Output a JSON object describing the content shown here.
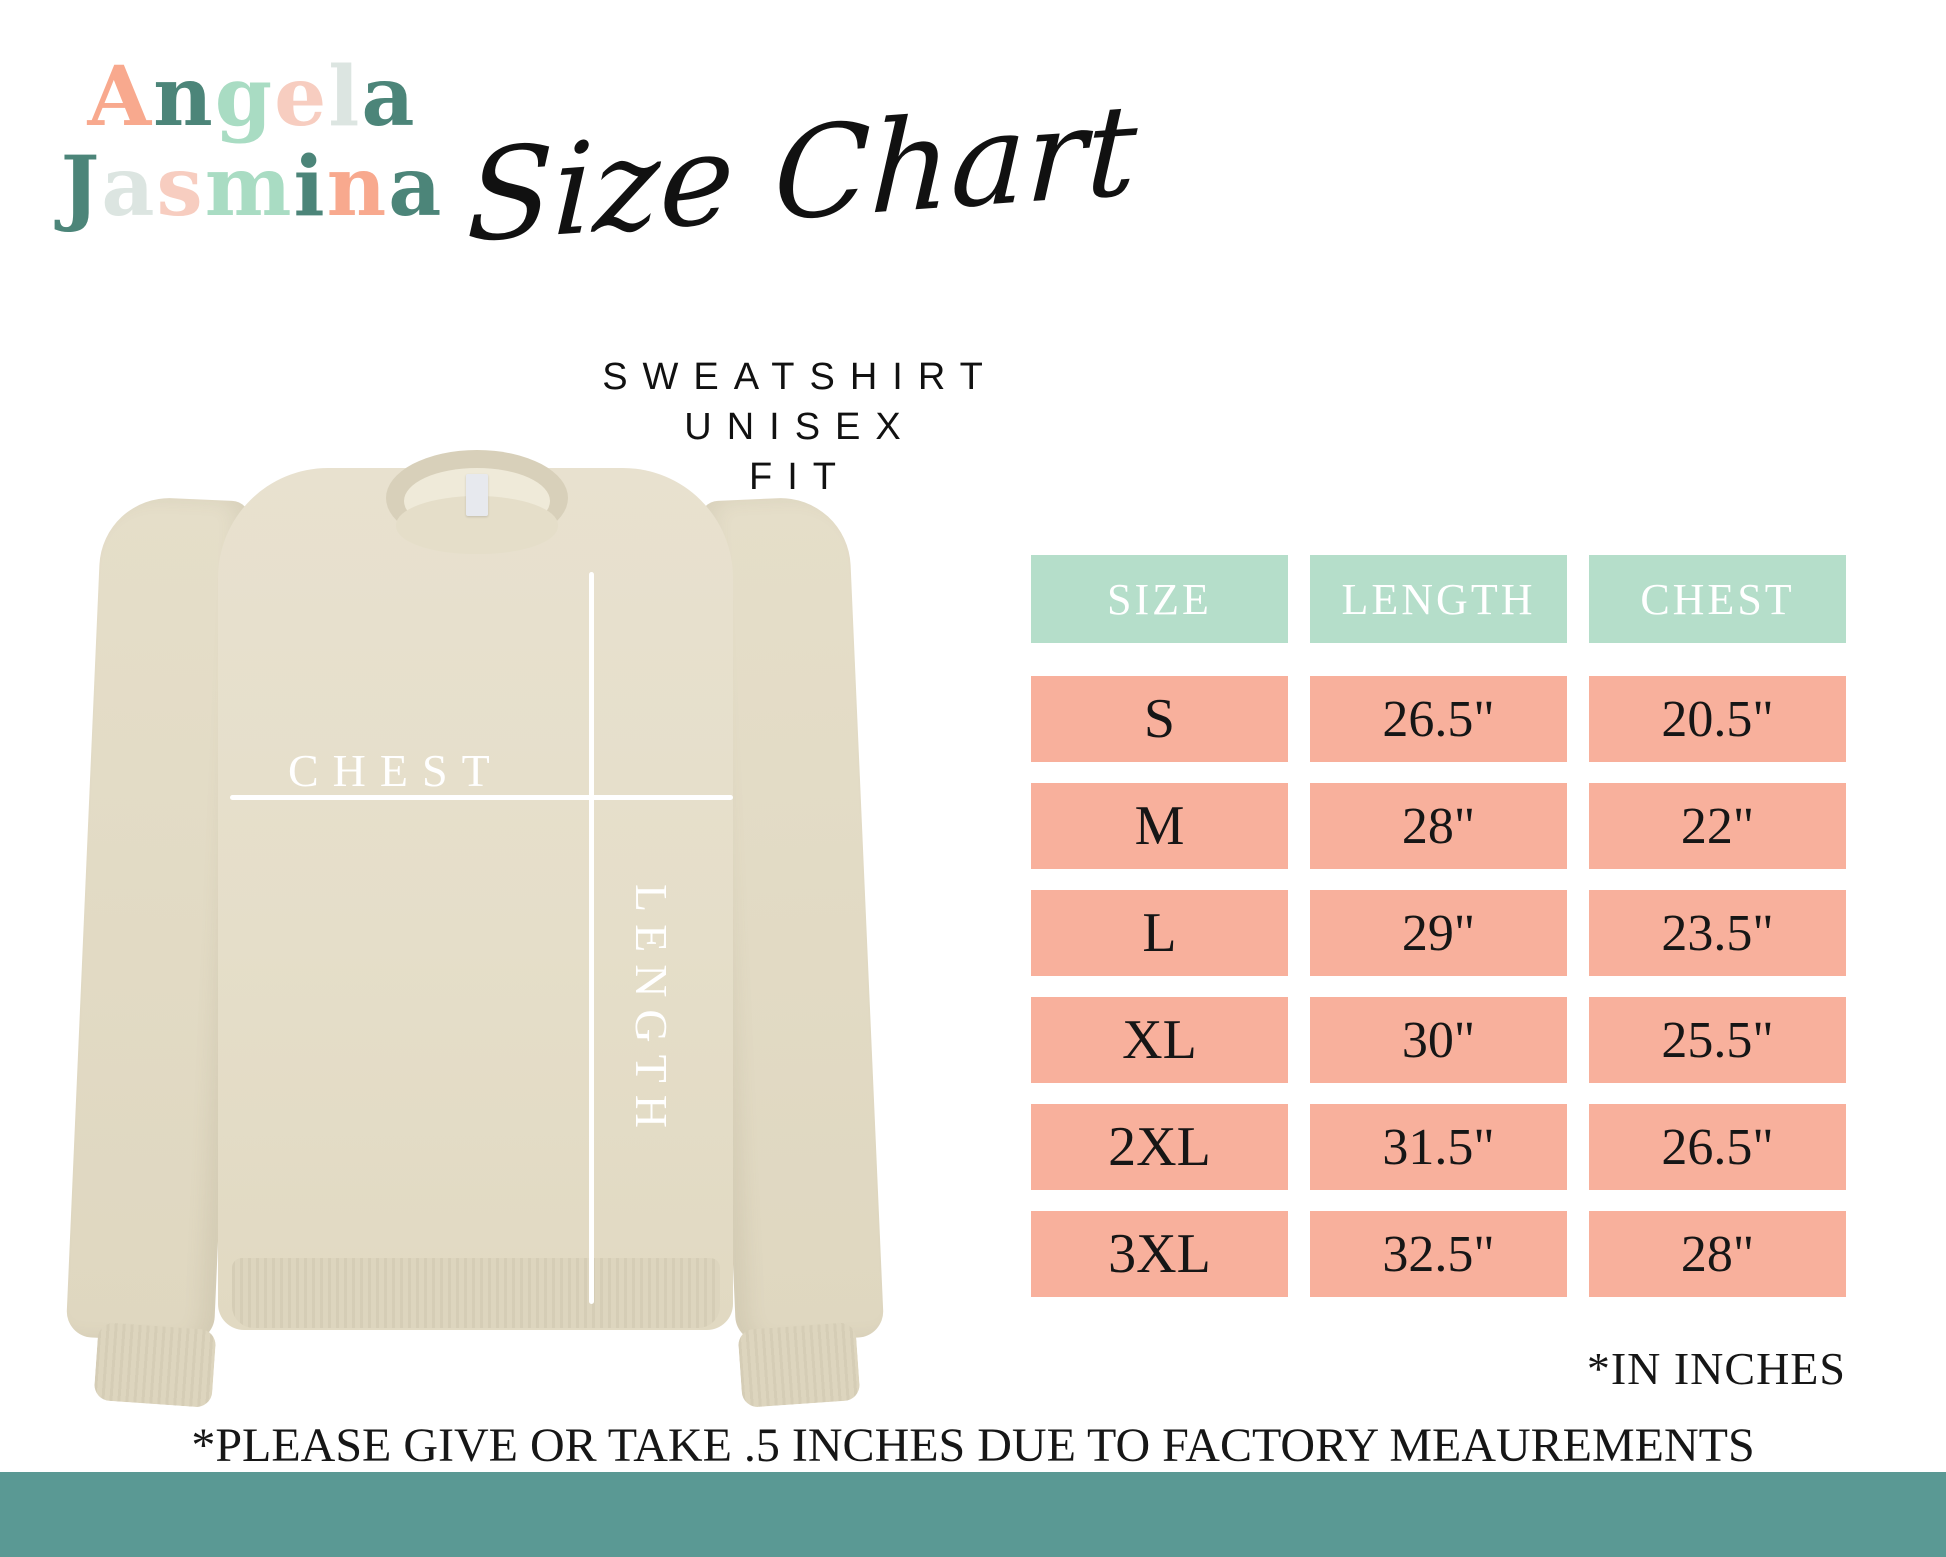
{
  "palette": {
    "logo-salmon": "#F8A98E",
    "logo-teal": "#4C8579",
    "logo-mint": "#A9DCC3",
    "logo-blush": "#F7CDC0",
    "logo-pale": "#DCE5E1",
    "header-bg": "#B5DECA",
    "cell-bg": "#F8B09C",
    "bar-teal": "#5A9994",
    "ink": "#161616",
    "white": "#FFFFFF",
    "sweatshirt-beige": "#E5DEC9"
  },
  "logo": {
    "line1": [
      {
        "ch": "A",
        "color": "logo-salmon"
      },
      {
        "ch": "n",
        "color": "logo-teal"
      },
      {
        "ch": "g",
        "color": "logo-mint"
      },
      {
        "ch": "e",
        "color": "logo-blush"
      },
      {
        "ch": "l",
        "color": "logo-pale"
      },
      {
        "ch": "a",
        "color": "logo-teal"
      }
    ],
    "line2": [
      {
        "ch": "J",
        "color": "logo-teal"
      },
      {
        "ch": "a",
        "color": "logo-pale"
      },
      {
        "ch": "s",
        "color": "logo-blush"
      },
      {
        "ch": "m",
        "color": "logo-mint"
      },
      {
        "ch": "i",
        "color": "logo-teal"
      },
      {
        "ch": "n",
        "color": "logo-salmon"
      },
      {
        "ch": "a",
        "color": "logo-teal"
      }
    ]
  },
  "title": {
    "script": "Size Chart"
  },
  "subtitle": {
    "line1": "SWEATSHIRT UNISEX",
    "line2": "FIT"
  },
  "garment": {
    "chest_label": "CHEST",
    "length_label": "LENGTH"
  },
  "table": {
    "headers": [
      "SIZE",
      "LENGTH",
      "CHEST"
    ],
    "rows": [
      {
        "size": "S",
        "length": "26.5\"",
        "chest": "20.5\""
      },
      {
        "size": "M",
        "length": "28\"",
        "chest": "22\""
      },
      {
        "size": "L",
        "length": "29\"",
        "chest": "23.5\""
      },
      {
        "size": "XL",
        "length": "30\"",
        "chest": "25.5\""
      },
      {
        "size": "2XL",
        "length": "31.5\"",
        "chest": "26.5\""
      },
      {
        "size": "3XL",
        "length": "32.5\"",
        "chest": "28\""
      }
    ]
  },
  "notes": {
    "units": "*IN INCHES",
    "disclaimer": "*PLEASE GIVE OR TAKE .5 INCHES DUE TO FACTORY MEAUREMENTS"
  },
  "chart_data": {
    "type": "table",
    "title": "Size Chart",
    "subtitle": "Sweatshirt Unisex Fit",
    "columns": [
      "SIZE",
      "LENGTH",
      "CHEST"
    ],
    "units": "inches",
    "rows": [
      [
        "S",
        26.5,
        20.5
      ],
      [
        "M",
        28,
        22
      ],
      [
        "L",
        29,
        23.5
      ],
      [
        "XL",
        30,
        25.5
      ],
      [
        "2XL",
        31.5,
        26.5
      ],
      [
        "3XL",
        32.5,
        28
      ]
    ],
    "notes": [
      "*IN INCHES",
      "*PLEASE GIVE OR TAKE .5 INCHES DUE TO FACTORY MEAUREMENTS"
    ]
  }
}
